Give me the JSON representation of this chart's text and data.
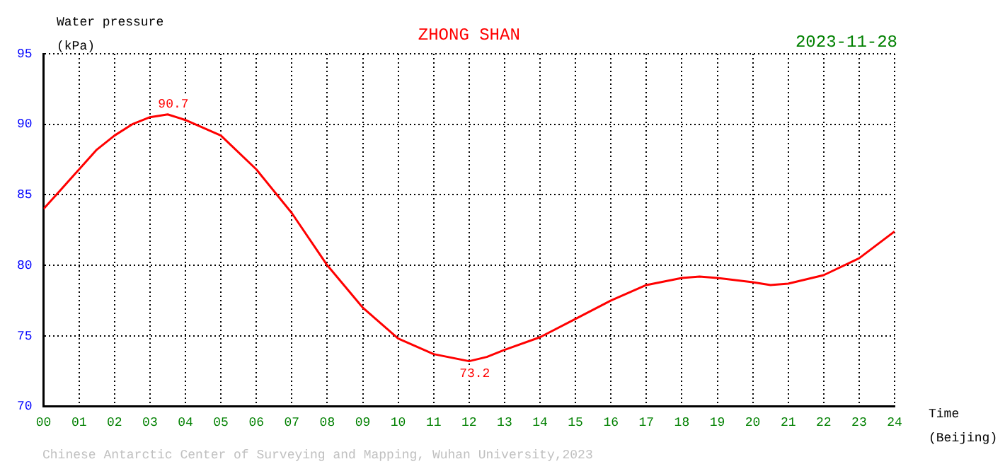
{
  "chart_data": {
    "type": "line",
    "title": "ZHONG SHAN",
    "subtitle": "2023-11-28",
    "xlabel": "Time\n(Beijing)",
    "ylabel": "Water pressure\n(kPa)",
    "x": [
      0,
      0.5,
      1,
      1.5,
      2,
      2.5,
      3,
      3.5,
      4,
      5,
      6,
      7,
      8,
      9,
      10,
      11,
      12,
      12.5,
      13,
      14,
      15,
      16,
      17,
      18,
      18.5,
      19,
      20,
      20.5,
      21,
      22,
      23,
      24
    ],
    "series": [
      {
        "color": "#ff0000",
        "values": [
          84.0,
          85.4,
          86.8,
          88.2,
          89.2,
          90.0,
          90.5,
          90.7,
          90.3,
          89.2,
          86.8,
          83.7,
          80.0,
          77.0,
          74.8,
          73.7,
          73.2,
          73.5,
          74.0,
          74.9,
          76.2,
          77.5,
          78.6,
          79.1,
          79.2,
          79.1,
          78.8,
          78.6,
          78.7,
          79.3,
          80.5,
          82.4
        ]
      }
    ],
    "xlim": [
      0,
      24
    ],
    "xticks": [
      {
        "value": 0,
        "label": "00"
      },
      {
        "value": 1,
        "label": "01"
      },
      {
        "value": 2,
        "label": "02"
      },
      {
        "value": 3,
        "label": "03"
      },
      {
        "value": 4,
        "label": "04"
      },
      {
        "value": 5,
        "label": "05"
      },
      {
        "value": 6,
        "label": "06"
      },
      {
        "value": 7,
        "label": "07"
      },
      {
        "value": 8,
        "label": "08"
      },
      {
        "value": 9,
        "label": "09"
      },
      10,
      11,
      12,
      13,
      14,
      15,
      16,
      17,
      18,
      19,
      20,
      21,
      22,
      23,
      24
    ],
    "ylim": [
      70,
      95
    ],
    "yticks": [
      70,
      75,
      80,
      85,
      90,
      95
    ],
    "grid": true,
    "legend": false,
    "marker": "none",
    "line_style": "solid",
    "annotations": [
      {
        "text": "90.7",
        "x": 3.5,
        "y": 90.7
      },
      {
        "text": "73.2",
        "x": 12,
        "y": 73.2
      },
      "Chinese Antarctic Center of Surveying and Mapping, Wuhan University,2023"
    ]
  }
}
